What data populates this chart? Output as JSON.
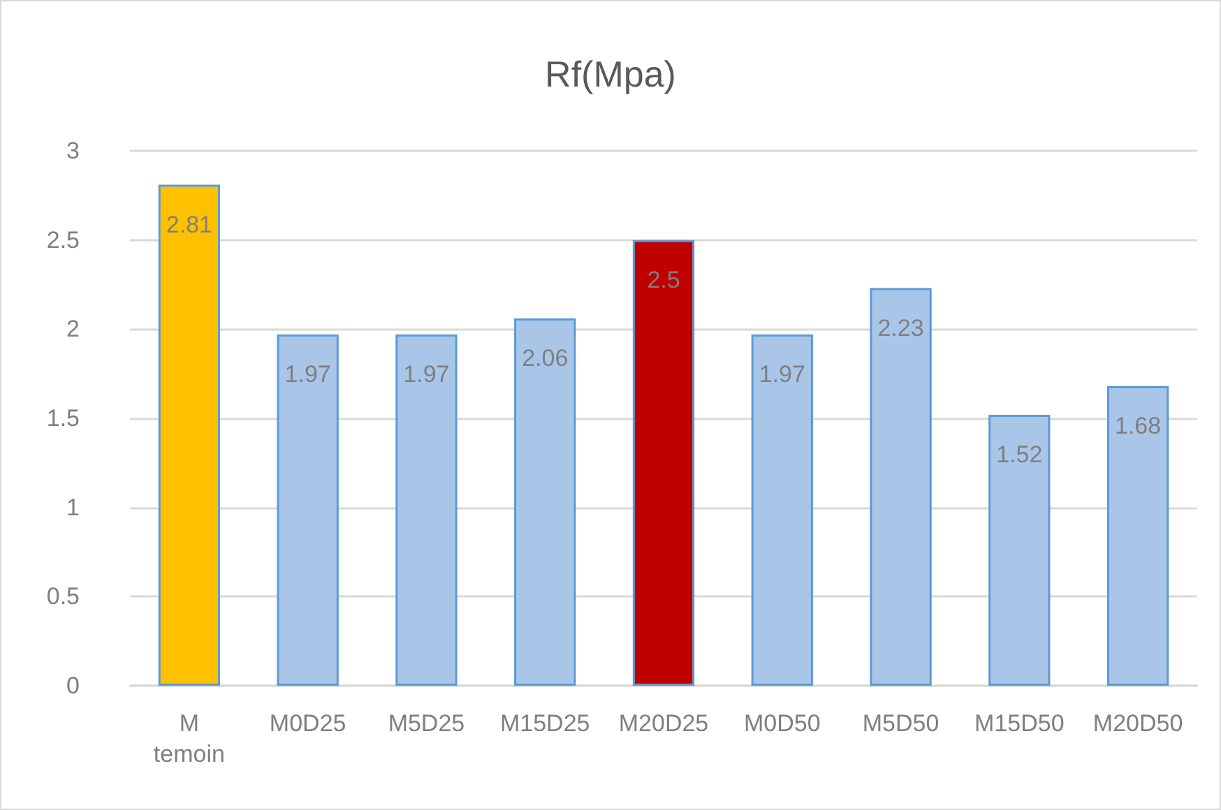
{
  "chart_data": {
    "type": "bar",
    "title": "Rf(Mpa)",
    "categories": [
      "M temoin",
      "M0D25",
      "M5D25",
      "M15D25",
      "M20D25",
      "M0D50",
      "M5D50",
      "M15D50",
      "M20D50"
    ],
    "values": [
      2.81,
      1.97,
      1.97,
      2.06,
      2.5,
      1.97,
      2.23,
      1.52,
      1.68
    ],
    "colors": [
      "#ffc000",
      "#a9c6e9",
      "#a9c6e9",
      "#a9c6e9",
      "#c00000",
      "#a9c6e9",
      "#a9c6e9",
      "#a9c6e9",
      "#a9c6e9"
    ],
    "ylim": [
      0,
      3
    ],
    "yticks": [
      0,
      0.5,
      1,
      1.5,
      2,
      2.5,
      3
    ],
    "grid": "y",
    "data_labels": true
  }
}
